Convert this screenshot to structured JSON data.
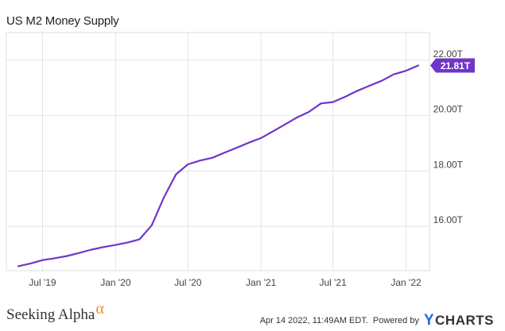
{
  "chart_data": {
    "type": "line",
    "title": "US M2 Money Supply",
    "xlabel": "",
    "ylabel": "",
    "x": [
      "2019-05-01",
      "2019-06-01",
      "2019-07-01",
      "2019-08-01",
      "2019-09-01",
      "2019-10-01",
      "2019-11-01",
      "2019-12-01",
      "2020-01-01",
      "2020-02-01",
      "2020-03-01",
      "2020-04-01",
      "2020-05-01",
      "2020-06-01",
      "2020-07-01",
      "2020-08-01",
      "2020-09-01",
      "2020-10-01",
      "2020-11-01",
      "2020-12-01",
      "2021-01-01",
      "2021-02-01",
      "2021-03-01",
      "2021-04-01",
      "2021-05-01",
      "2021-06-01",
      "2021-07-01",
      "2021-08-01",
      "2021-09-01",
      "2021-10-01",
      "2021-11-01",
      "2021-12-01",
      "2022-01-01",
      "2022-02-01"
    ],
    "series": [
      {
        "values": [
          14.56,
          14.66,
          14.78,
          14.85,
          14.93,
          15.04,
          15.16,
          15.25,
          15.33,
          15.42,
          15.53,
          16.04,
          17.03,
          17.88,
          18.24,
          18.38,
          18.48,
          18.66,
          18.84,
          19.02,
          19.19,
          19.44,
          19.67,
          19.93,
          20.13,
          20.44,
          20.49,
          20.68,
          20.9,
          21.08,
          21.26,
          21.49,
          21.62,
          21.81
        ]
      }
    ],
    "y_ticks": [
      "16.00T",
      "18.00T",
      "20.00T",
      "22.00T"
    ],
    "y_tick_values": [
      16,
      18,
      20,
      22
    ],
    "x_ticks": [
      "Jul '19",
      "Jan '20",
      "Jul '20",
      "Jan '21",
      "Jul '21",
      "Jan '22"
    ],
    "x_tick_dates": [
      "2019-07-01",
      "2020-01-01",
      "2020-07-01",
      "2021-01-01",
      "2021-07-01",
      "2022-01-01"
    ],
    "xlim": [
      "2019-04-01",
      "2022-03-01"
    ],
    "ylim": [
      14.4,
      23.0
    ],
    "last_value_label": "21.81T",
    "line_color": "#6f36c9",
    "grid": true,
    "legend": "none"
  },
  "footer": {
    "source_brand": "Seeking Alpha",
    "source_brand_mark": "α",
    "timestamp": "Apr 14 2022, 11:49AM EDT.",
    "powered_by": "Powered by",
    "logo_letter": "Y",
    "logo_text": "CHARTS"
  }
}
